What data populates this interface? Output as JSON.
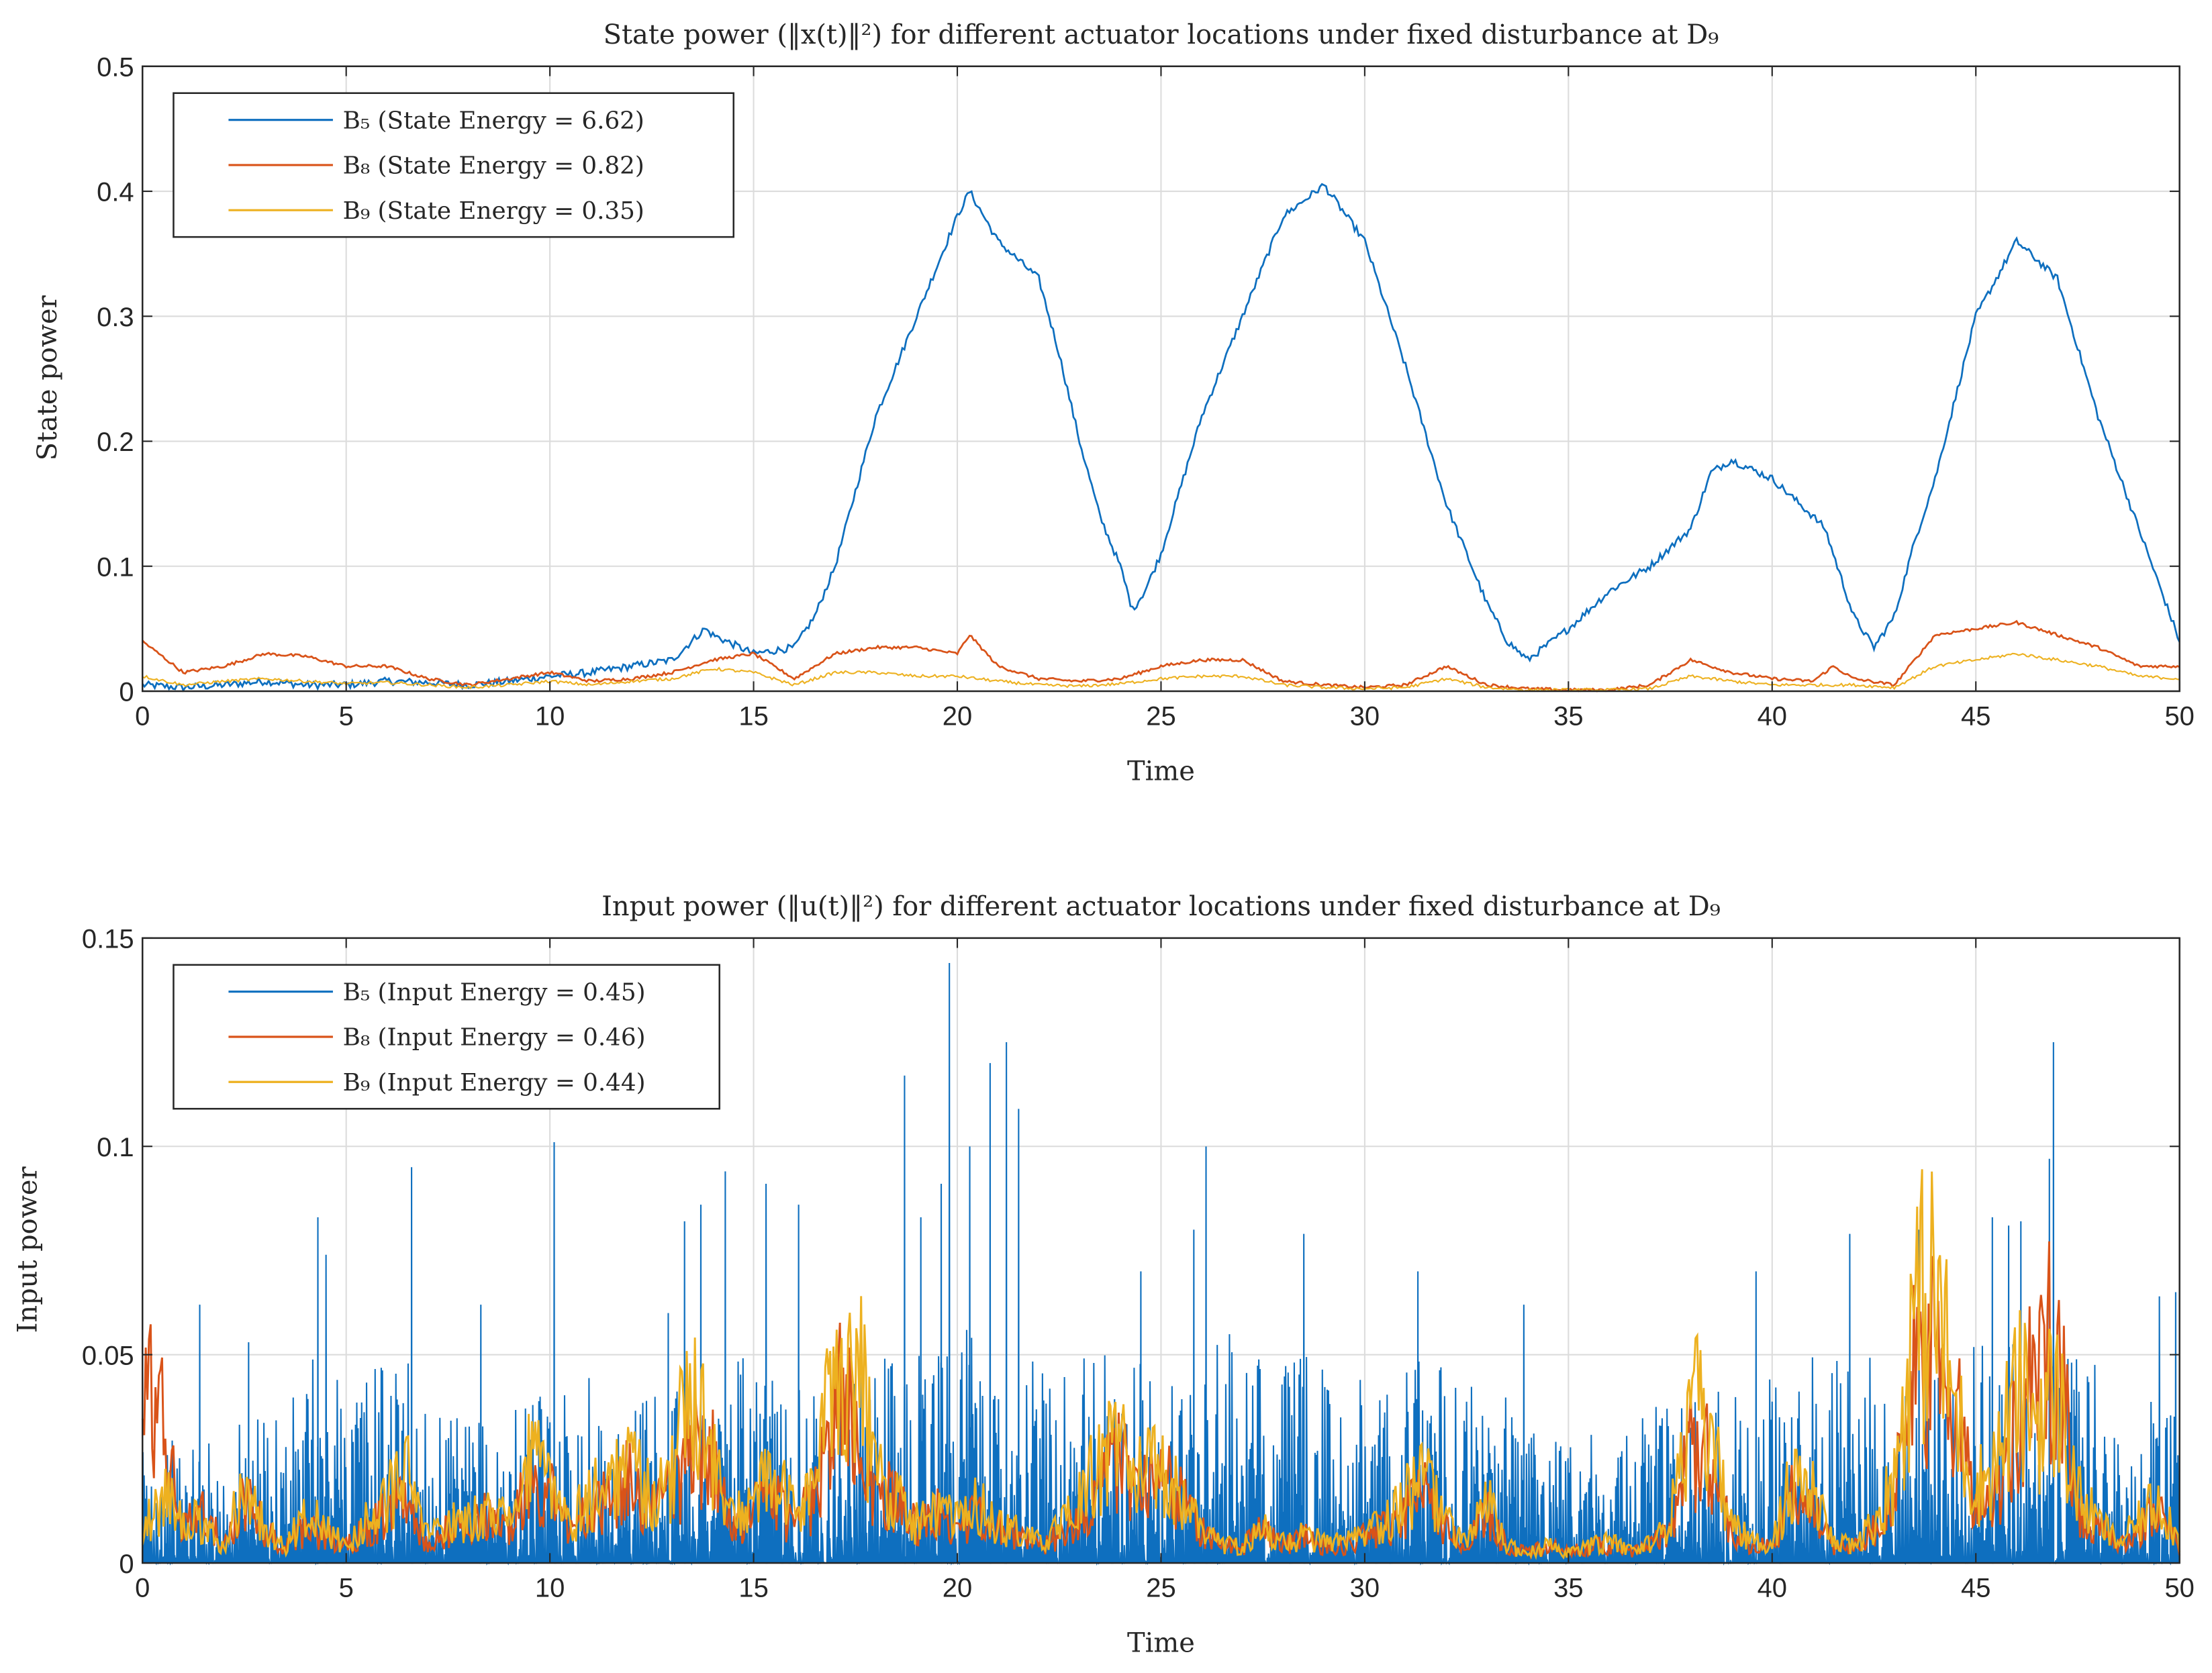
{
  "colors": {
    "B5": "#0e6fbf",
    "B8": "#d95319",
    "B9": "#edb120",
    "axis": "#262626",
    "grid": "#dcdcdc"
  },
  "chart_data": [
    {
      "type": "line",
      "title": "State power (‖x(t)‖²) for different actuator locations under fixed disturbance at D₉",
      "xlabel": "Time",
      "ylabel": "State power",
      "xlim": [
        0,
        50
      ],
      "ylim": [
        0,
        0.5
      ],
      "xticks": [
        "0",
        "5",
        "10",
        "15",
        "20",
        "25",
        "30",
        "35",
        "40",
        "45",
        "50"
      ],
      "yticks": [
        "0",
        "0.1",
        "0.2",
        "0.3",
        "0.4",
        "0.5"
      ],
      "grid": true,
      "legend_position": "top-left",
      "series": [
        {
          "name": "B₅ (State Energy = 6.62)",
          "key": "B5",
          "x": [
            0,
            1,
            2,
            3,
            4,
            5,
            6,
            7,
            8,
            9,
            10,
            11,
            12,
            13,
            13.8,
            14,
            15,
            16,
            16.5,
            17,
            17.5,
            18,
            19,
            20,
            20.3,
            21,
            22,
            22.5,
            23,
            23.5,
            24,
            24.3,
            24.6,
            25,
            26,
            27,
            28,
            29,
            30,
            31,
            32,
            33,
            33.5,
            34,
            35,
            36,
            37,
            38,
            38.5,
            39,
            40,
            41,
            41.3,
            42,
            42.5,
            43,
            43.5,
            44,
            45,
            46,
            47,
            48,
            49,
            50
          ],
          "y": [
            0.005,
            0.003,
            0.005,
            0.008,
            0.005,
            0.005,
            0.008,
            0.007,
            0.005,
            0.008,
            0.012,
            0.015,
            0.02,
            0.025,
            0.05,
            0.045,
            0.03,
            0.035,
            0.06,
            0.1,
            0.16,
            0.22,
            0.3,
            0.38,
            0.4,
            0.36,
            0.33,
            0.27,
            0.2,
            0.14,
            0.1,
            0.065,
            0.08,
            0.11,
            0.22,
            0.3,
            0.38,
            0.405,
            0.36,
            0.26,
            0.15,
            0.07,
            0.04,
            0.025,
            0.05,
            0.08,
            0.1,
            0.13,
            0.175,
            0.185,
            0.17,
            0.14,
            0.13,
            0.06,
            0.035,
            0.06,
            0.12,
            0.17,
            0.3,
            0.36,
            0.33,
            0.22,
            0.13,
            0.04
          ]
        },
        {
          "name": "B₈ (State Energy = 0.82)",
          "key": "B8",
          "x": [
            0,
            1,
            2,
            3,
            4,
            5,
            6,
            7,
            8,
            9,
            10,
            11,
            12,
            13,
            14,
            15,
            16,
            17,
            18,
            19,
            20,
            20.3,
            21,
            22,
            23,
            24,
            25,
            26,
            27,
            28,
            29,
            30,
            31,
            32,
            33,
            34,
            35,
            36,
            37,
            38,
            39,
            40,
            41,
            41.5,
            42,
            43,
            44,
            45,
            46,
            47,
            48,
            49,
            50
          ],
          "y": [
            0.04,
            0.015,
            0.02,
            0.03,
            0.028,
            0.02,
            0.02,
            0.01,
            0.005,
            0.01,
            0.015,
            0.008,
            0.01,
            0.015,
            0.025,
            0.03,
            0.01,
            0.03,
            0.035,
            0.035,
            0.03,
            0.045,
            0.02,
            0.01,
            0.008,
            0.01,
            0.02,
            0.025,
            0.025,
            0.008,
            0.005,
            0.003,
            0.005,
            0.02,
            0.005,
            0.002,
            0.001,
            0.001,
            0.005,
            0.025,
            0.015,
            0.01,
            0.008,
            0.02,
            0.01,
            0.005,
            0.045,
            0.05,
            0.055,
            0.045,
            0.035,
            0.02,
            0.02
          ]
        },
        {
          "name": "B₉ (State Energy = 0.35)",
          "key": "B9",
          "x": [
            0,
            1,
            2,
            3,
            4,
            5,
            6,
            7,
            8,
            9,
            10,
            11,
            12,
            13,
            14,
            15,
            16,
            17,
            18,
            19,
            20,
            21,
            22,
            23,
            24,
            25,
            26,
            27,
            28,
            29,
            30,
            31,
            32,
            33,
            34,
            35,
            36,
            37,
            38,
            39,
            40,
            41,
            42,
            43,
            44,
            45,
            46,
            47,
            48,
            49,
            50
          ],
          "y": [
            0.012,
            0.005,
            0.008,
            0.01,
            0.008,
            0.006,
            0.007,
            0.005,
            0.003,
            0.005,
            0.008,
            0.005,
            0.008,
            0.01,
            0.018,
            0.015,
            0.005,
            0.015,
            0.015,
            0.012,
            0.012,
            0.008,
            0.005,
            0.004,
            0.006,
            0.01,
            0.012,
            0.012,
            0.005,
            0.003,
            0.002,
            0.003,
            0.01,
            0.003,
            0.001,
            0.001,
            0.001,
            0.002,
            0.012,
            0.008,
            0.005,
            0.005,
            0.005,
            0.003,
            0.02,
            0.025,
            0.03,
            0.025,
            0.02,
            0.012,
            0.01
          ]
        }
      ]
    },
    {
      "type": "line",
      "title": "Input power (‖u(t)‖²) for different actuator locations under fixed disturbance at D₉",
      "xlabel": "Time",
      "ylabel": "Input power",
      "xlim": [
        0,
        50
      ],
      "ylim": [
        0,
        0.15
      ],
      "xticks": [
        "0",
        "5",
        "10",
        "15",
        "20",
        "25",
        "30",
        "35",
        "40",
        "45",
        "50"
      ],
      "yticks": [
        "0",
        "0.05",
        "0.1",
        "0.15"
      ],
      "grid": true,
      "legend_position": "top-left",
      "x_step": 0.5,
      "series": [
        {
          "name": "B₅ (Input Energy = 0.45)",
          "key": "B5",
          "typical_level_per_unit": [
            0.03,
            0.03,
            0.035,
            0.04,
            0.05,
            0.05,
            0.05,
            0.035,
            0.035,
            0.04,
            0.045,
            0.035,
            0.04,
            0.045,
            0.05,
            0.05,
            0.045,
            0.045,
            0.05,
            0.055,
            0.06,
            0.055,
            0.05,
            0.05,
            0.05,
            0.05,
            0.055,
            0.05,
            0.05,
            0.045,
            0.045,
            0.05,
            0.045,
            0.04,
            0.04,
            0.035,
            0.035,
            0.04,
            0.045,
            0.045,
            0.05,
            0.05,
            0.05,
            0.045,
            0.055,
            0.055,
            0.05,
            0.05,
            0.04,
            0.04
          ],
          "peaks": [
            [
              1.4,
              0.062
            ],
            [
              2.6,
              0.053
            ],
            [
              4.3,
              0.083
            ],
            [
              4.5,
              0.074
            ],
            [
              6.6,
              0.095
            ],
            [
              8.3,
              0.062
            ],
            [
              10.1,
              0.101
            ],
            [
              12.9,
              0.06
            ],
            [
              13.3,
              0.082
            ],
            [
              13.7,
              0.086
            ],
            [
              14.3,
              0.094
            ],
            [
              15.3,
              0.091
            ],
            [
              16.1,
              0.086
            ],
            [
              18.7,
              0.117
            ],
            [
              19.1,
              0.083
            ],
            [
              19.6,
              0.091
            ],
            [
              19.8,
              0.144
            ],
            [
              20.3,
              0.1
            ],
            [
              20.8,
              0.12
            ],
            [
              21.2,
              0.125
            ],
            [
              21.5,
              0.109
            ],
            [
              24.5,
              0.07
            ],
            [
              25.8,
              0.08
            ],
            [
              26.1,
              0.1
            ],
            [
              28.5,
              0.079
            ],
            [
              31.3,
              0.07
            ],
            [
              33.9,
              0.062
            ],
            [
              39.6,
              0.07
            ],
            [
              41.9,
              0.079
            ],
            [
              43.6,
              0.08
            ],
            [
              45.4,
              0.083
            ],
            [
              45.8,
              0.081
            ],
            [
              46.1,
              0.082
            ],
            [
              46.8,
              0.097
            ],
            [
              46.9,
              0.125
            ],
            [
              49.5,
              0.064
            ],
            [
              49.9,
              0.065
            ]
          ]
        },
        {
          "name": "B₈ (Input Energy = 0.46)",
          "key": "B8",
          "y": [
            0.055,
            0.04,
            0.01,
            0.015,
            0.005,
            0.02,
            0.01,
            0.005,
            0.01,
            0.008,
            0.005,
            0.01,
            0.015,
            0.02,
            0.005,
            0.01,
            0.01,
            0.015,
            0.01,
            0.025,
            0.02,
            0.01,
            0.015,
            0.02,
            0.025,
            0.015,
            0.02,
            0.035,
            0.03,
            0.01,
            0.015,
            0.02,
            0.01,
            0.02,
            0.045,
            0.05,
            0.02,
            0.02,
            0.01,
            0.015,
            0.01,
            0.015,
            0.01,
            0.008,
            0.005,
            0.008,
            0.015,
            0.025,
            0.03,
            0.02,
            0.025,
            0.02,
            0.01,
            0.005,
            0.005,
            0.01,
            0.005,
            0.008,
            0.005,
            0.005,
            0.008,
            0.01,
            0.015,
            0.02,
            0.01,
            0.005,
            0.015,
            0.005,
            0.003,
            0.005,
            0.003,
            0.005,
            0.005,
            0.003,
            0.005,
            0.01,
            0.035,
            0.03,
            0.01,
            0.005,
            0.005,
            0.02,
            0.015,
            0.005,
            0.005,
            0.01,
            0.02,
            0.055,
            0.06,
            0.045,
            0.02,
            0.02,
            0.04,
            0.055,
            0.07,
            0.015,
            0.01,
            0.005,
            0.01,
            0.015,
            0.005
          ]
        },
        {
          "name": "B₉ (Input Energy = 0.44)",
          "key": "B9",
          "y": [
            0.01,
            0.02,
            0.015,
            0.01,
            0.005,
            0.025,
            0.01,
            0.005,
            0.015,
            0.01,
            0.005,
            0.012,
            0.02,
            0.025,
            0.008,
            0.012,
            0.012,
            0.018,
            0.012,
            0.03,
            0.025,
            0.012,
            0.02,
            0.025,
            0.03,
            0.02,
            0.025,
            0.058,
            0.03,
            0.012,
            0.02,
            0.025,
            0.015,
            0.025,
            0.055,
            0.065,
            0.025,
            0.02,
            0.012,
            0.015,
            0.012,
            0.018,
            0.01,
            0.01,
            0.006,
            0.01,
            0.018,
            0.03,
            0.038,
            0.025,
            0.028,
            0.02,
            0.01,
            0.006,
            0.005,
            0.01,
            0.006,
            0.008,
            0.006,
            0.006,
            0.008,
            0.012,
            0.02,
            0.025,
            0.012,
            0.006,
            0.018,
            0.005,
            0.003,
            0.005,
            0.003,
            0.005,
            0.006,
            0.004,
            0.006,
            0.012,
            0.048,
            0.035,
            0.012,
            0.006,
            0.006,
            0.025,
            0.02,
            0.006,
            0.005,
            0.012,
            0.025,
            0.075,
            0.08,
            0.045,
            0.022,
            0.03,
            0.05,
            0.045,
            0.05,
            0.02,
            0.012,
            0.006,
            0.012,
            0.02,
            0.006
          ]
        }
      ]
    }
  ]
}
